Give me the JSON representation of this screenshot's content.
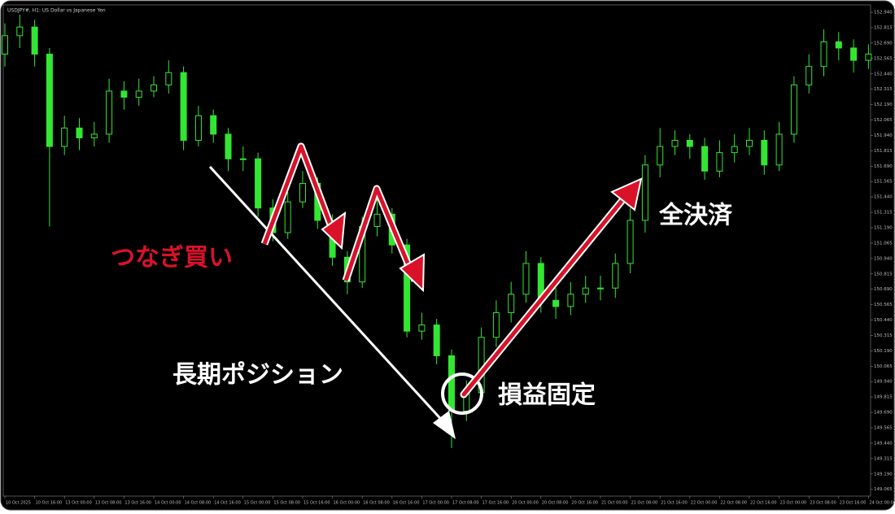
{
  "chart_data": {
    "type": "candlestick",
    "title": "USDJPY#, H1: US Dollar vs Japanese Yen",
    "categories": [
      "10 Oct 2025",
      null,
      "10 Oct 16:00",
      null,
      "13 Oct 00:00",
      null,
      "13 Oct 08:00",
      null,
      "13 Oct 16:00",
      null,
      "14 Oct 00:00",
      null,
      "14 Oct 08:00",
      null,
      "14 Oct 16:00",
      null,
      "15 Oct 00:00",
      null,
      "15 Oct 08:00",
      null,
      "15 Oct 16:00",
      null,
      "16 Oct 00:00",
      null,
      "16 Oct 08:00",
      null,
      "16 Oct 16:00",
      null,
      "17 Oct 00:00",
      null,
      "17 Oct 08:00",
      null,
      "17 Oct 16:00",
      null,
      "20 Oct 00:00",
      null,
      "20 Oct 08:00",
      null,
      "20 Oct 16:00",
      null,
      "21 Oct 00:00",
      null,
      "21 Oct 08:00",
      null,
      "21 Oct 16:00",
      null,
      "22 Oct 00:00",
      null,
      "22 Oct 08:00",
      null,
      "22 Oct 16:00",
      null,
      "23 Oct 00:00",
      null,
      "23 Oct 08:00",
      null,
      "23 Oct 16:00",
      null,
      "24 Oct 00:00"
    ],
    "open": [
      152.6,
      152.75,
      152.82,
      152.6,
      151.85,
      152.0,
      151.92,
      151.95,
      152.3,
      152.25,
      152.3,
      152.35,
      152.45,
      151.9,
      152.1,
      151.95,
      151.75,
      151.75,
      151.35,
      151.15,
      151.4,
      151.55,
      151.25,
      150.95,
      150.75,
      151.2,
      151.3,
      151.05,
      150.35,
      150.4,
      150.15,
      149.7,
      149.85,
      150.3,
      150.5,
      150.65,
      150.9,
      150.6,
      150.55,
      150.65,
      150.7,
      150.7,
      150.9,
      151.25,
      151.7,
      151.85,
      151.9,
      151.85,
      151.65,
      151.8,
      151.85,
      151.9,
      151.7,
      151.95,
      152.35,
      152.5,
      152.7,
      152.65,
      152.55
    ],
    "high": [
      152.85,
      152.92,
      152.88,
      152.65,
      152.1,
      152.08,
      152.05,
      152.4,
      152.38,
      152.4,
      152.42,
      152.55,
      152.5,
      152.18,
      152.15,
      152.0,
      151.85,
      151.8,
      151.42,
      151.48,
      151.65,
      151.6,
      151.3,
      151.0,
      151.28,
      151.42,
      151.35,
      151.1,
      150.5,
      150.45,
      150.2,
      149.95,
      150.38,
      150.6,
      150.75,
      151.0,
      150.95,
      150.7,
      150.75,
      150.8,
      150.8,
      150.98,
      151.35,
      151.78,
      152.0,
      151.98,
      151.95,
      151.92,
      151.9,
      151.95,
      152.0,
      151.98,
      152.05,
      152.42,
      152.6,
      152.8,
      152.78,
      152.72,
      152.68
    ],
    "low": [
      152.5,
      152.65,
      152.5,
      151.2,
      151.78,
      151.82,
      151.85,
      151.88,
      152.15,
      152.18,
      152.25,
      152.28,
      151.82,
      151.85,
      151.88,
      151.65,
      151.65,
      151.28,
      151.08,
      151.1,
      151.35,
      151.18,
      150.88,
      150.65,
      150.7,
      151.12,
      150.98,
      150.3,
      150.28,
      150.08,
      149.4,
      149.62,
      149.78,
      150.22,
      150.42,
      150.58,
      150.5,
      150.45,
      150.48,
      150.58,
      150.6,
      150.62,
      150.82,
      151.15,
      151.6,
      151.78,
      151.75,
      151.58,
      151.6,
      151.72,
      151.78,
      151.62,
      151.65,
      151.88,
      152.28,
      152.42,
      152.55,
      152.45,
      152.48
    ],
    "close": [
      152.75,
      152.82,
      152.6,
      151.85,
      152.0,
      151.92,
      151.95,
      152.3,
      152.25,
      152.3,
      152.35,
      152.45,
      151.9,
      152.1,
      151.95,
      151.75,
      151.75,
      151.35,
      151.15,
      151.4,
      151.55,
      151.25,
      150.95,
      150.75,
      151.2,
      151.3,
      151.05,
      150.35,
      150.4,
      150.15,
      149.7,
      149.85,
      150.3,
      150.5,
      150.65,
      150.9,
      150.6,
      150.55,
      150.65,
      150.7,
      150.7,
      150.9,
      151.25,
      151.7,
      151.85,
      151.9,
      151.85,
      151.65,
      151.8,
      151.85,
      151.9,
      151.7,
      151.95,
      152.35,
      152.5,
      152.7,
      152.65,
      152.55,
      152.6
    ],
    "color": "#33e633",
    "ylim": [
      149.01,
      153.0
    ],
    "yticks": [
      {
        "value": 152.94,
        "label": "152.940"
      },
      {
        "value": 152.815,
        "label": "152.815"
      },
      {
        "value": 152.69,
        "label": "152.690"
      },
      {
        "value": 152.565,
        "label": "152.565"
      },
      {
        "value": 152.44,
        "label": "152.440"
      },
      {
        "value": 152.315,
        "label": "152.315"
      },
      {
        "value": 152.19,
        "label": "152.190"
      },
      {
        "value": 152.065,
        "label": "152.065"
      },
      {
        "value": 151.94,
        "label": "151.940"
      },
      {
        "value": 151.815,
        "label": "151.815"
      },
      {
        "value": 151.69,
        "label": "151.690"
      },
      {
        "value": 151.565,
        "label": "151.565"
      },
      {
        "value": 151.44,
        "label": "151.440"
      },
      {
        "value": 151.315,
        "label": "151.315"
      },
      {
        "value": 151.19,
        "label": "151.190"
      },
      {
        "value": 151.065,
        "label": "151.065"
      },
      {
        "value": 150.94,
        "label": "150.940"
      },
      {
        "value": 150.815,
        "label": "150.815"
      },
      {
        "value": 150.69,
        "label": "150.690"
      },
      {
        "value": 150.565,
        "label": "150.565"
      },
      {
        "value": 150.44,
        "label": "150.440"
      },
      {
        "value": 150.315,
        "label": "150.315"
      },
      {
        "value": 150.19,
        "label": "150.190"
      },
      {
        "value": 150.065,
        "label": "150.065"
      },
      {
        "value": 149.94,
        "label": "149.940"
      },
      {
        "value": 149.815,
        "label": "149.815"
      },
      {
        "value": 149.69,
        "label": "149.690"
      },
      {
        "value": 149.565,
        "label": "149.565"
      },
      {
        "value": 149.44,
        "label": "149.440"
      },
      {
        "value": 149.315,
        "label": "149.315"
      },
      {
        "value": 149.19,
        "label": "149.190"
      },
      {
        "value": 149.065,
        "label": "149.065"
      }
    ],
    "annotations": [
      "つなぎ買い",
      "長期ポジション",
      "損益固定",
      "全決済"
    ]
  }
}
